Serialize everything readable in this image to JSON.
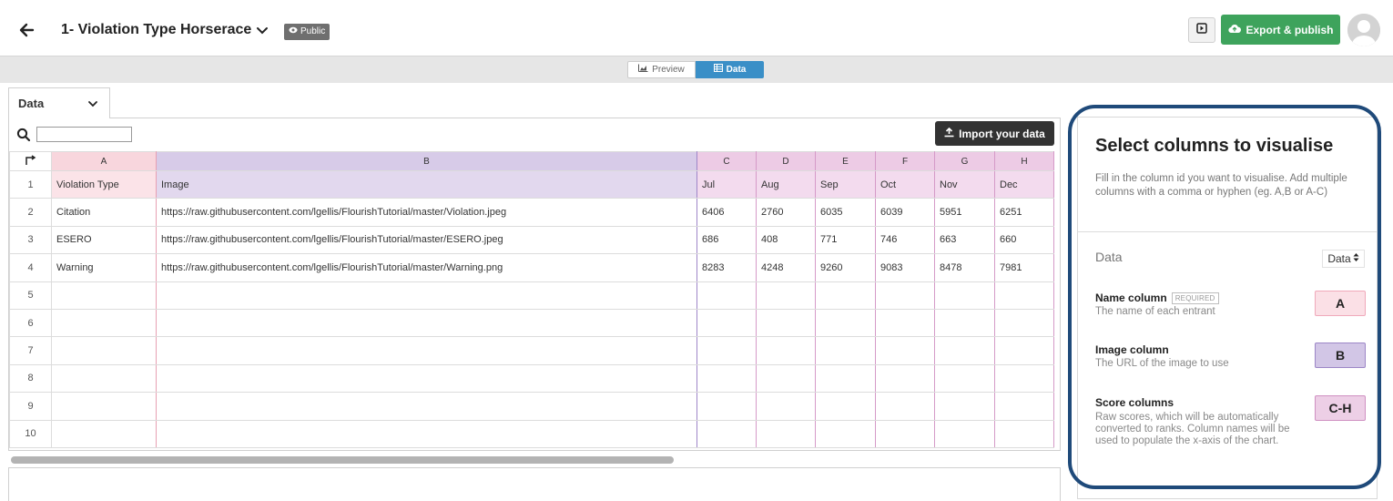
{
  "header": {
    "title": "1- Violation Type Horserace",
    "visibility": "Public",
    "export_label": "Export & publish"
  },
  "modebar": {
    "preview_label": "Preview",
    "data_label": "Data"
  },
  "sheet": {
    "tab_label": "Data",
    "search_value": "",
    "import_label": "Import your data"
  },
  "table": {
    "columns": [
      {
        "letter": "A",
        "name": "Violation Type"
      },
      {
        "letter": "B",
        "name": "Image"
      },
      {
        "letter": "C",
        "name": "Jul"
      },
      {
        "letter": "D",
        "name": "Aug"
      },
      {
        "letter": "E",
        "name": "Sep"
      },
      {
        "letter": "F",
        "name": "Oct"
      },
      {
        "letter": "G",
        "name": "Nov"
      },
      {
        "letter": "H",
        "name": "Dec"
      }
    ],
    "row_numbers": [
      "1",
      "2",
      "3",
      "4",
      "5",
      "6",
      "7",
      "8",
      "9",
      "10"
    ],
    "rows": [
      [
        "Citation",
        "https://raw.githubusercontent.com/lgellis/FlourishTutorial/master/Violation.jpeg",
        "6406",
        "2760",
        "6035",
        "6039",
        "5951",
        "6251"
      ],
      [
        "ESERO",
        "https://raw.githubusercontent.com/lgellis/FlourishTutorial/master/ESERO.jpeg",
        "686",
        "408",
        "771",
        "746",
        "663",
        "660"
      ],
      [
        "Warning",
        "https://raw.githubusercontent.com/lgellis/FlourishTutorial/master/Warning.png",
        "8283",
        "4248",
        "9260",
        "9083",
        "8478",
        "7981"
      ]
    ]
  },
  "side_panel": {
    "title": "Select columns to visualise",
    "description": "Fill in the column id you want to visualise. Add multiple columns with a comma or hyphen (eg. A,B or A-C)",
    "data_label": "Data",
    "sheet_select": "Data",
    "bindings": [
      {
        "label": "Name column",
        "badge": "REQUIRED",
        "desc": "The name of each entrant",
        "value": "A"
      },
      {
        "label": "Image column",
        "badge": "",
        "desc": "The URL of the image to use",
        "value": "B"
      },
      {
        "label": "Score columns",
        "badge": "",
        "desc": "Raw scores, which will be automatically converted to ranks. Column names will be used to populate the x-axis of the chart.",
        "value": "C-H"
      }
    ]
  },
  "colors": {
    "export_green": "#3ea35c",
    "data_blue": "#3a8fc7",
    "highlight_navy": "#1f4a7a",
    "col_a": "#f8d6dd",
    "col_b": "#d7cbe8",
    "col_ch": "#edcbe5"
  }
}
